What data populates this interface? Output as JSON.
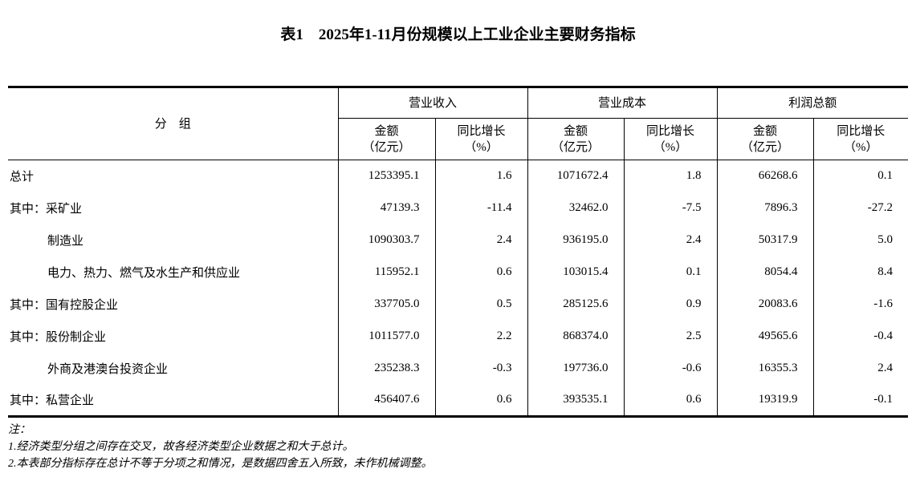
{
  "title": "表1　2025年1-11月份规模以上工业企业主要财务指标",
  "colors": {
    "text": "#000000",
    "border": "#000000",
    "background": "#ffffff"
  },
  "table": {
    "group_header": "分　组",
    "col_groups": [
      {
        "label": "营业收入"
      },
      {
        "label": "营业成本"
      },
      {
        "label": "利润总额"
      }
    ],
    "sub_headers": {
      "amount_line1": "金额",
      "amount_line2": "（亿元）",
      "growth_line1": "同比增长",
      "growth_line2": "（%）"
    },
    "rows": [
      {
        "label": "总计",
        "indent": 0,
        "values": [
          "1253395.1",
          "1.6",
          "1071672.4",
          "1.8",
          "66268.6",
          "0.1"
        ]
      },
      {
        "label": "其中：采矿业",
        "indent": 0,
        "values": [
          "47139.3",
          "-11.4",
          "32462.0",
          "-7.5",
          "7896.3",
          "-27.2"
        ]
      },
      {
        "label": "制造业",
        "indent": 1,
        "values": [
          "1090303.7",
          "2.4",
          "936195.0",
          "2.4",
          "50317.9",
          "5.0"
        ]
      },
      {
        "label": "电力、热力、燃气及水生产和供应业",
        "indent": 1,
        "values": [
          "115952.1",
          "0.6",
          "103015.4",
          "0.1",
          "8054.4",
          "8.4"
        ]
      },
      {
        "label": "其中：国有控股企业",
        "indent": 0,
        "values": [
          "337705.0",
          "0.5",
          "285125.6",
          "0.9",
          "20083.6",
          "-1.6"
        ]
      },
      {
        "label": "其中：股份制企业",
        "indent": 0,
        "values": [
          "1011577.0",
          "2.2",
          "868374.0",
          "2.5",
          "49565.6",
          "-0.4"
        ]
      },
      {
        "label": "外商及港澳台投资企业",
        "indent": 1,
        "values": [
          "235238.3",
          "-0.3",
          "197736.0",
          "-0.6",
          "16355.3",
          "2.4"
        ]
      },
      {
        "label": "其中：私营企业",
        "indent": 0,
        "values": [
          "456407.6",
          "0.6",
          "393535.1",
          "0.6",
          "19319.9",
          "-0.1"
        ]
      }
    ],
    "notes": [
      "注：",
      "1.经济类型分组之间存在交叉，故各经济类型企业数据之和大于总计。",
      "2.本表部分指标存在总计不等于分项之和情况，是数据四舍五入所致，未作机械调整。"
    ]
  }
}
